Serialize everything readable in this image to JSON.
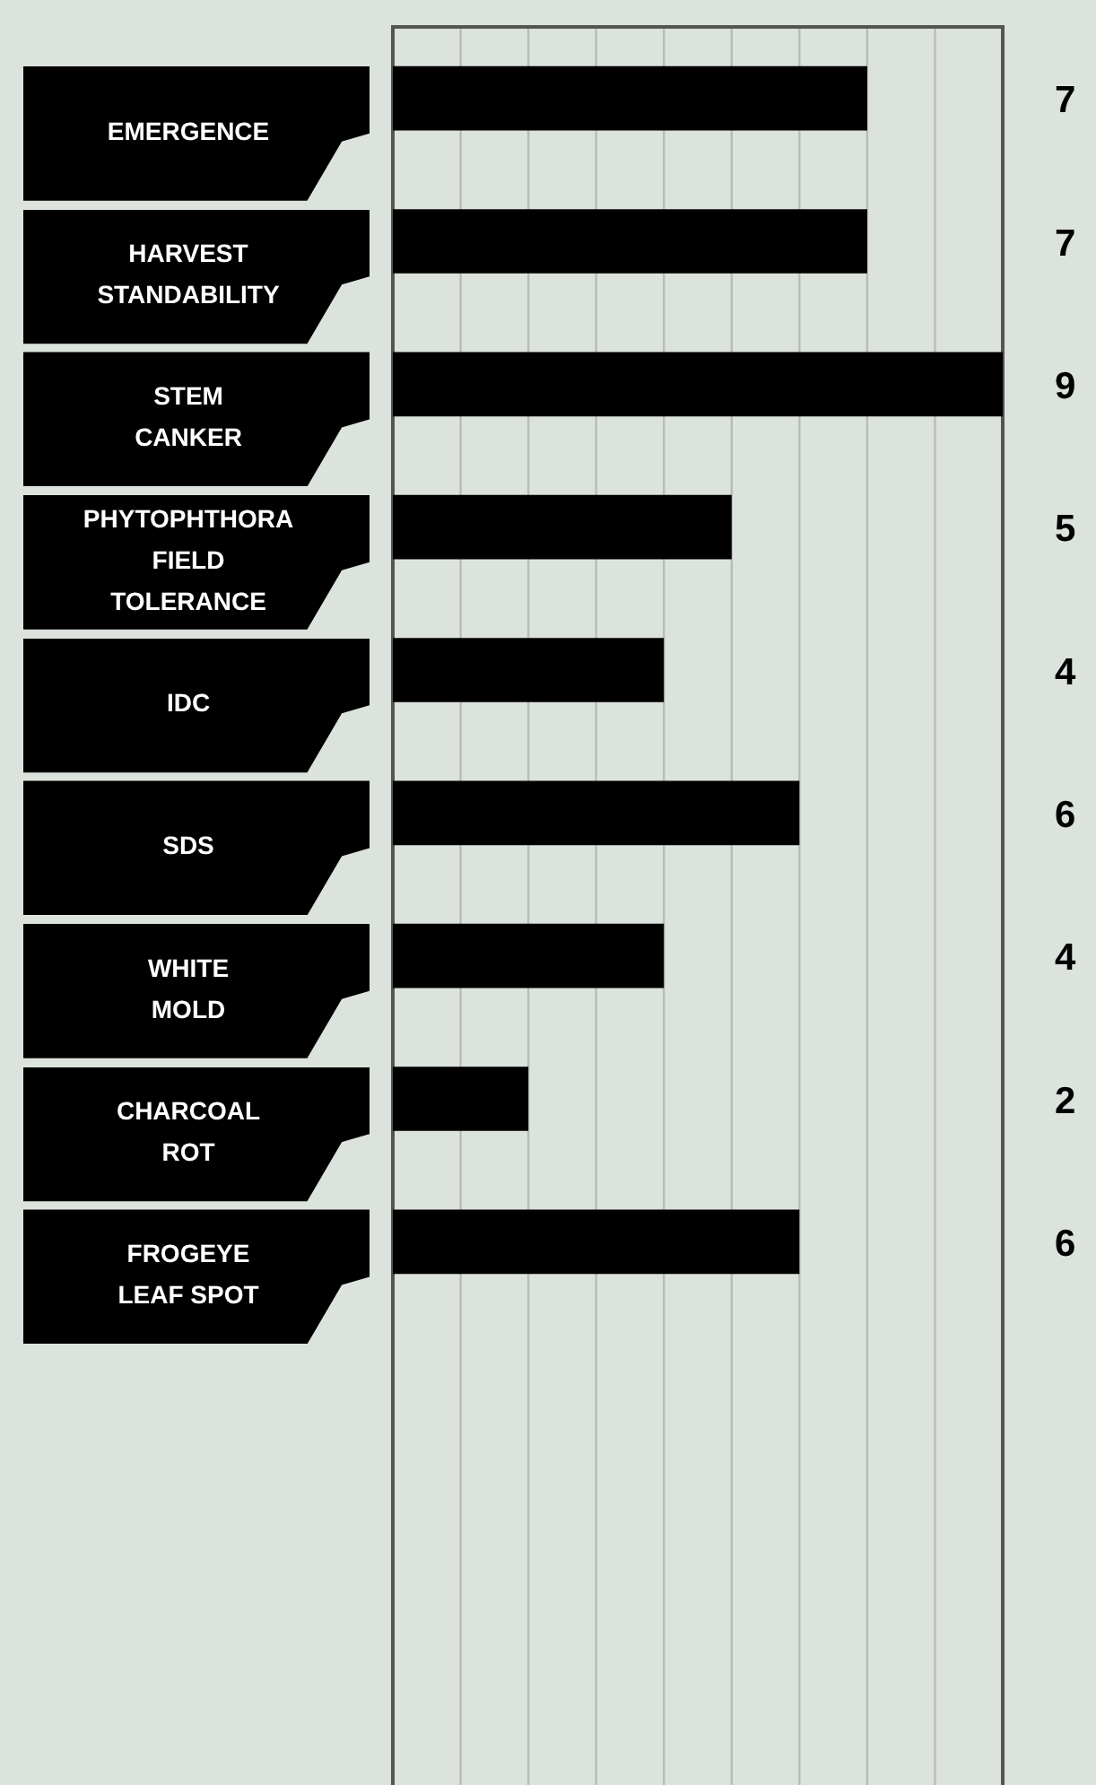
{
  "chart_data": {
    "type": "bar",
    "orientation": "horizontal",
    "categories": [
      "EMERGENCE",
      "HARVEST\nSTANDABILITY",
      "STEM\nCANKER",
      "PHYTOPHTHORA\nFIELD\nTOLERANCE",
      "IDC",
      "SDS",
      "WHITE\nMOLD",
      "CHARCOAL\nROT",
      "FROGEYE\nLEAF SPOT"
    ],
    "values": [
      7,
      7,
      9,
      5,
      4,
      6,
      4,
      2,
      6
    ],
    "color": "#000000",
    "xlim": [
      0,
      9
    ],
    "xticks": [
      {
        "value": 0,
        "label": null
      },
      {
        "value": 1,
        "label": null
      },
      {
        "value": 2,
        "label": null
      },
      {
        "value": 3,
        "label": null
      },
      {
        "value": 4,
        "label": null
      },
      {
        "value": 5,
        "label": null
      },
      {
        "value": 6,
        "label": null
      },
      {
        "value": 7,
        "label": null
      },
      {
        "value": 8,
        "label": null
      },
      {
        "value": 9,
        "label": null
      }
    ],
    "tick_labels": false,
    "grid": "x",
    "data_labels": true,
    "legend": false
  }
}
